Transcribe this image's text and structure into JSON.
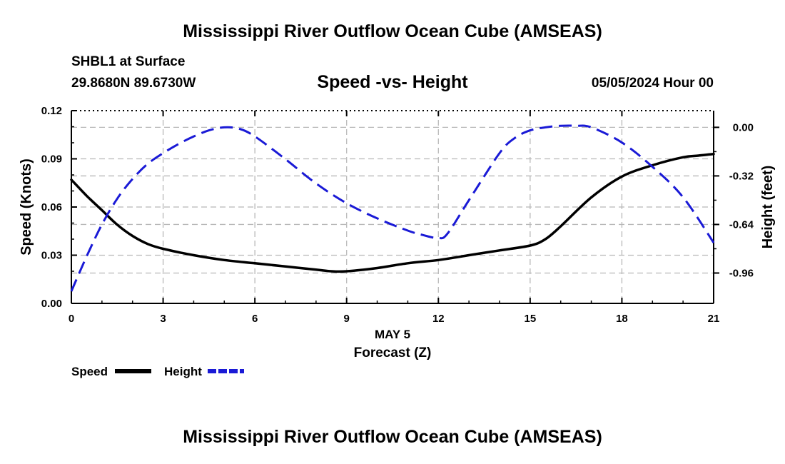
{
  "header": {
    "title": "Mississippi River Outflow Ocean Cube (AMSEAS)",
    "station": "SHBL1 at Surface",
    "coords": "29.8680N  89.6730W",
    "subtitle": "Speed -vs- Height",
    "datetime": "05/05/2024 Hour 00"
  },
  "footer": {
    "title": "Mississippi River Outflow Ocean Cube (AMSEAS)"
  },
  "legend": {
    "speed_label": "Speed",
    "height_label": "Height"
  },
  "colors": {
    "speed": "#000000",
    "height": "#1a1ad6",
    "grid": "#b8b8b8"
  },
  "chart_data": {
    "type": "line",
    "title": "Speed -vs- Height",
    "xlabel": "Forecast (Z)",
    "xlabel_date": "MAY 5",
    "ylabel": "Speed (Knots)",
    "y2label": "Height (feet)",
    "xlim": [
      0,
      21
    ],
    "ylim": [
      0,
      0.12
    ],
    "y2lim": [
      -1.16,
      0.11
    ],
    "x_ticks": [
      0,
      3,
      6,
      9,
      12,
      15,
      18,
      21
    ],
    "x_tick_labels": [
      "0",
      "3",
      "6",
      "9",
      "12",
      "15",
      "18",
      "21"
    ],
    "y_ticks": [
      0,
      0.03,
      0.06,
      0.09,
      0.12
    ],
    "y_tick_labels": [
      "0.00",
      "0.03",
      "0.06",
      "0.09",
      "0.12"
    ],
    "y2_ticks": [
      0,
      -0.32,
      -0.64,
      -0.96
    ],
    "y2_tick_labels": [
      "0.00",
      "-0.32",
      "-0.64",
      "-0.96"
    ],
    "grid": true,
    "legend_position": "bottom-left",
    "series": [
      {
        "name": "Speed",
        "axis": "left",
        "style": "solid",
        "x": [
          0,
          0.5,
          1,
          1.5,
          2,
          2.5,
          3,
          4,
          5,
          6,
          7,
          8,
          8.5,
          9,
          10,
          11,
          12,
          13,
          14,
          15,
          15.5,
          16,
          17,
          18,
          19,
          20,
          20.5,
          21
        ],
        "y": [
          0.077,
          0.067,
          0.058,
          0.049,
          0.042,
          0.037,
          0.034,
          0.03,
          0.027,
          0.025,
          0.023,
          0.021,
          0.02,
          0.02,
          0.022,
          0.025,
          0.027,
          0.03,
          0.033,
          0.036,
          0.04,
          0.048,
          0.066,
          0.079,
          0.086,
          0.091,
          0.092,
          0.093
        ]
      },
      {
        "name": "Height",
        "axis": "right",
        "style": "dashed",
        "x": [
          0,
          0.5,
          1,
          1.5,
          2,
          2.5,
          3,
          3.5,
          4,
          4.5,
          5,
          5.5,
          6,
          7,
          8,
          9,
          10,
          11,
          11.5,
          12,
          12.3,
          13,
          14,
          14.5,
          15,
          15.5,
          16,
          16.5,
          17,
          18,
          19,
          20,
          21
        ],
        "y": [
          -1.08,
          -0.85,
          -0.64,
          -0.47,
          -0.34,
          -0.24,
          -0.17,
          -0.11,
          -0.06,
          -0.02,
          0.0,
          -0.01,
          -0.06,
          -0.21,
          -0.37,
          -0.5,
          -0.6,
          -0.68,
          -0.71,
          -0.73,
          -0.7,
          -0.48,
          -0.17,
          -0.07,
          -0.02,
          0.0,
          0.01,
          0.01,
          0.0,
          -0.1,
          -0.26,
          -0.46,
          -0.76
        ]
      }
    ]
  }
}
